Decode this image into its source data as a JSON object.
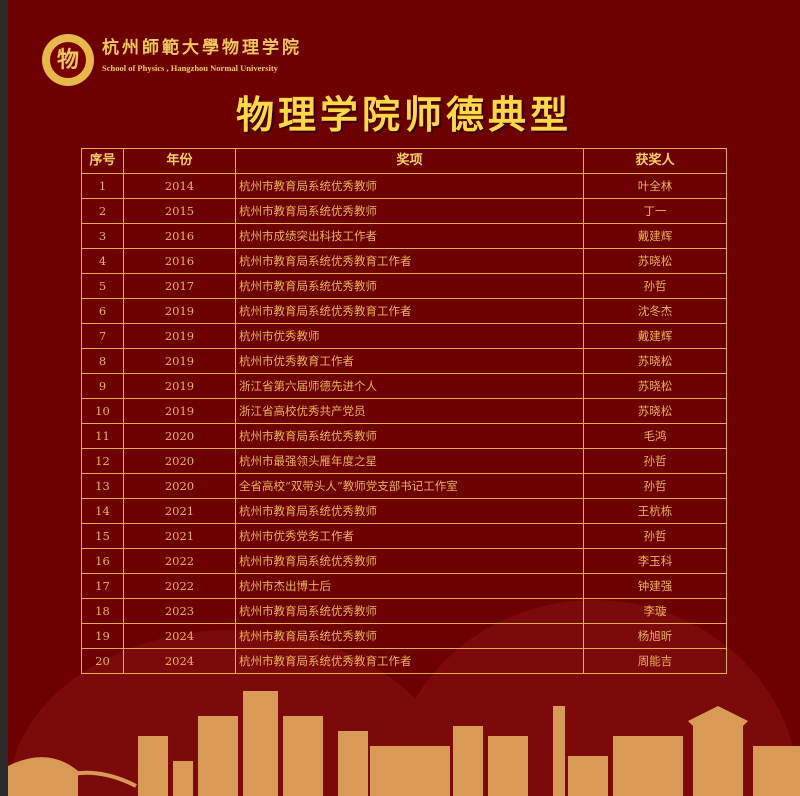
{
  "header": {
    "logo_text": "物",
    "school_name_cn": "杭州師範大學物理学院",
    "school_name_en": "School of Physics , Hangzhou Normal University"
  },
  "title": "物理学院师德典型",
  "table": {
    "columns": [
      "序号",
      "年份",
      "奖项",
      "获奖人"
    ],
    "rows": [
      {
        "no": "1",
        "year": "2014",
        "award": "杭州市教育局系统优秀教师",
        "winner": "叶全林"
      },
      {
        "no": "2",
        "year": "2015",
        "award": "杭州市教育局系统优秀教师",
        "winner": "丁一"
      },
      {
        "no": "3",
        "year": "2016",
        "award": "杭州市成绩突出科技工作者",
        "winner": "戴建辉"
      },
      {
        "no": "4",
        "year": "2016",
        "award": "杭州市教育局系统优秀教育工作者",
        "winner": "苏晓松"
      },
      {
        "no": "5",
        "year": "2017",
        "award": "杭州市教育局系统优秀教师",
        "winner": "孙哲"
      },
      {
        "no": "6",
        "year": "2019",
        "award": "杭州市教育局系统优秀教育工作者",
        "winner": "沈冬杰"
      },
      {
        "no": "7",
        "year": "2019",
        "award": "杭州市优秀教师",
        "winner": "戴建辉"
      },
      {
        "no": "8",
        "year": "2019",
        "award": "杭州市优秀教育工作者",
        "winner": "苏晓松"
      },
      {
        "no": "9",
        "year": "2019",
        "award": "浙江省第六届师德先进个人",
        "winner": "苏晓松"
      },
      {
        "no": "10",
        "year": "2019",
        "award": "浙江省高校优秀共产党员",
        "winner": "苏晓松"
      },
      {
        "no": "11",
        "year": "2020",
        "award": "杭州市教育局系统优秀教师",
        "winner": "毛鸿"
      },
      {
        "no": "12",
        "year": "2020",
        "award": "杭州市最强领头雁年度之星",
        "winner": "孙哲"
      },
      {
        "no": "13",
        "year": "2020",
        "award": "全省高校“双带头人”教师党支部书记工作室",
        "winner": "孙哲"
      },
      {
        "no": "14",
        "year": "2021",
        "award": "杭州市教育局系统优秀教师",
        "winner": "王杭栋"
      },
      {
        "no": "15",
        "year": "2021",
        "award": "杭州市优秀党务工作者",
        "winner": "孙哲"
      },
      {
        "no": "16",
        "year": "2022",
        "award": "杭州市教育局系统优秀教师",
        "winner": "李玉科"
      },
      {
        "no": "17",
        "year": "2022",
        "award": "杭州市杰出博士后",
        "winner": "钟建强"
      },
      {
        "no": "18",
        "year": "2023",
        "award": "杭州市教育局系统优秀教师",
        "winner": "李璇"
      },
      {
        "no": "19",
        "year": "2024",
        "award": "杭州市教育局系统优秀教师",
        "winner": "杨旭昕"
      },
      {
        "no": "20",
        "year": "2024",
        "award": "杭州市教育局系统优秀教育工作者",
        "winner": "周能吉"
      }
    ]
  },
  "colors": {
    "background": "#6d0000",
    "gold": "#e3ad4b",
    "title": "#ffd84a"
  }
}
